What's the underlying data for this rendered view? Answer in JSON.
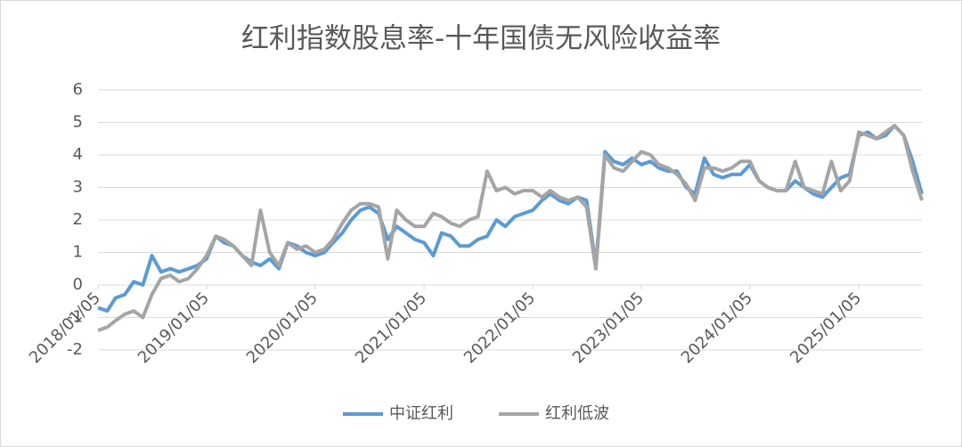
{
  "chart_data": {
    "type": "line",
    "title": "红利指数股息率-十年国债无风险收益率",
    "x": [
      "2018/01/05",
      "2018/02/05",
      "2018/03/05",
      "2018/04/05",
      "2018/05/05",
      "2018/06/05",
      "2018/07/05",
      "2018/08/05",
      "2018/09/05",
      "2018/10/05",
      "2018/11/05",
      "2018/12/05",
      "2019/01/05",
      "2019/02/05",
      "2019/03/05",
      "2019/04/05",
      "2019/05/05",
      "2019/06/05",
      "2019/07/05",
      "2019/08/05",
      "2019/09/05",
      "2019/10/05",
      "2019/11/05",
      "2019/12/05",
      "2020/01/05",
      "2020/02/05",
      "2020/03/05",
      "2020/04/05",
      "2020/05/05",
      "2020/06/05",
      "2020/07/05",
      "2020/08/05",
      "2020/09/05",
      "2020/10/05",
      "2020/11/05",
      "2020/12/05",
      "2021/01/05",
      "2021/02/05",
      "2021/03/05",
      "2021/04/05",
      "2021/05/05",
      "2021/06/05",
      "2021/07/05",
      "2021/08/05",
      "2021/09/05",
      "2021/10/05",
      "2021/11/05",
      "2021/12/05",
      "2022/01/05",
      "2022/02/05",
      "2022/03/05",
      "2022/04/05",
      "2022/05/05",
      "2022/06/05",
      "2022/07/05",
      "2022/08/05",
      "2022/09/05",
      "2022/10/05",
      "2022/11/05",
      "2022/12/05",
      "2023/01/05",
      "2023/02/05",
      "2023/03/05",
      "2023/04/05",
      "2023/05/05",
      "2023/06/05",
      "2023/07/05",
      "2023/08/05",
      "2023/09/05",
      "2023/10/05",
      "2023/11/05",
      "2023/12/05",
      "2024/01/05",
      "2024/02/05",
      "2024/03/05",
      "2024/04/05",
      "2024/05/05",
      "2024/06/05",
      "2024/07/05",
      "2024/08/05",
      "2024/09/05",
      "2024/10/05",
      "2024/11/05",
      "2024/12/05",
      "2025/01/05",
      "2025/02/05",
      "2025/03/05",
      "2025/04/05",
      "2025/05/05",
      "2025/06/05",
      "2025/07/05",
      "2025/08/05"
    ],
    "series": [
      {
        "name": "中证红利",
        "color": "#5b9bd5",
        "values": [
          -0.7,
          -0.8,
          -0.4,
          -0.3,
          0.1,
          0.0,
          0.9,
          0.4,
          0.5,
          0.4,
          0.5,
          0.6,
          0.8,
          1.5,
          1.3,
          1.2,
          0.9,
          0.7,
          0.6,
          0.8,
          0.5,
          1.3,
          1.2,
          1.0,
          0.9,
          1.0,
          1.3,
          1.6,
          2.0,
          2.3,
          2.4,
          2.2,
          1.4,
          1.8,
          1.6,
          1.4,
          1.3,
          0.9,
          1.6,
          1.5,
          1.2,
          1.2,
          1.4,
          1.5,
          2.0,
          1.8,
          2.1,
          2.2,
          2.3,
          2.6,
          2.8,
          2.6,
          2.5,
          2.7,
          2.6,
          0.6,
          4.1,
          3.8,
          3.7,
          3.9,
          3.7,
          3.8,
          3.6,
          3.5,
          3.5,
          3.0,
          2.8,
          3.9,
          3.4,
          3.3,
          3.4,
          3.4,
          3.7,
          3.2,
          3.0,
          2.9,
          2.9,
          3.2,
          3.0,
          2.8,
          2.7,
          3.0,
          3.3,
          3.4,
          4.6,
          4.7,
          4.5,
          4.6,
          4.9,
          4.6,
          3.8,
          2.8
        ]
      },
      {
        "name": "红利低波",
        "color": "#a5a5a5",
        "values": [
          -1.4,
          -1.3,
          -1.1,
          -0.9,
          -0.8,
          -1.0,
          -0.3,
          0.2,
          0.3,
          0.1,
          0.2,
          0.5,
          0.9,
          1.5,
          1.4,
          1.2,
          0.9,
          0.6,
          2.3,
          1.0,
          0.6,
          1.3,
          1.1,
          1.2,
          1.0,
          1.1,
          1.4,
          1.9,
          2.3,
          2.5,
          2.5,
          2.4,
          0.8,
          2.3,
          2.0,
          1.8,
          1.8,
          2.2,
          2.1,
          1.9,
          1.8,
          2.0,
          2.1,
          3.5,
          2.9,
          3.0,
          2.8,
          2.9,
          2.9,
          2.7,
          2.9,
          2.7,
          2.6,
          2.7,
          2.4,
          0.5,
          4.0,
          3.6,
          3.5,
          3.8,
          4.1,
          4.0,
          3.7,
          3.6,
          3.4,
          3.1,
          2.6,
          3.6,
          3.6,
          3.5,
          3.6,
          3.8,
          3.8,
          3.2,
          3.0,
          2.9,
          2.9,
          3.8,
          3.0,
          2.9,
          2.8,
          3.8,
          2.9,
          3.2,
          4.7,
          4.6,
          4.5,
          4.7,
          4.9,
          4.6,
          3.5,
          2.6
        ]
      }
    ],
    "ylim": [
      -2,
      6
    ],
    "yticks": [
      -2,
      -1,
      0,
      1,
      2,
      3,
      4,
      5,
      6
    ],
    "xticks": [
      "2018/01/05",
      "2019/01/05",
      "2020/01/05",
      "2021/01/05",
      "2022/01/05",
      "2023/01/05",
      "2024/01/05",
      "2025/01/05"
    ],
    "grid": true,
    "legend": "bottom"
  }
}
